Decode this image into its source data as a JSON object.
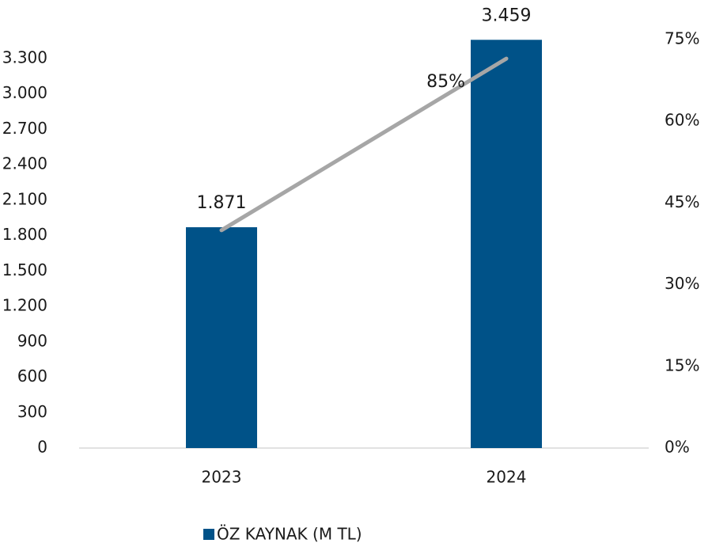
{
  "chart_data": {
    "type": "bar",
    "categories": [
      "2023",
      "2024"
    ],
    "series": [
      {
        "name": "ÖZ KAYNAK (M TL)",
        "type": "bar",
        "color": "#005288",
        "values": [
          1871,
          3459
        ],
        "value_labels": [
          "1.871",
          "3.459"
        ]
      },
      {
        "type": "line",
        "axis": "y2",
        "color": "#a6a6a6",
        "values": [
          40,
          71.5
        ],
        "annotation": "85%"
      }
    ],
    "ylim": [
      0,
      3461
    ],
    "yticks": [
      0,
      300,
      600,
      900,
      {
        "value": 1200,
        "label": "1.200"
      },
      {
        "value": 1500,
        "label": "1.500"
      },
      {
        "value": 1800,
        "label": "1.800"
      },
      {
        "value": 2100,
        "label": "2.100"
      },
      {
        "value": 2400,
        "label": "2.400"
      },
      {
        "value": 2700,
        "label": "2.700"
      },
      {
        "value": 3000,
        "label": "3.000"
      },
      {
        "value": 3300,
        "label": "3.300"
      }
    ],
    "y2lim": [
      0,
      75
    ],
    "y2ticks": [
      {
        "value": 0,
        "label": "0%"
      },
      {
        "value": 15,
        "label": "15%"
      },
      {
        "value": 30,
        "label": "30%"
      },
      {
        "value": 45,
        "label": "45%"
      },
      {
        "value": 60,
        "label": "60%"
      },
      {
        "value": 75,
        "label": "75%"
      }
    ],
    "legend": "bottom"
  }
}
